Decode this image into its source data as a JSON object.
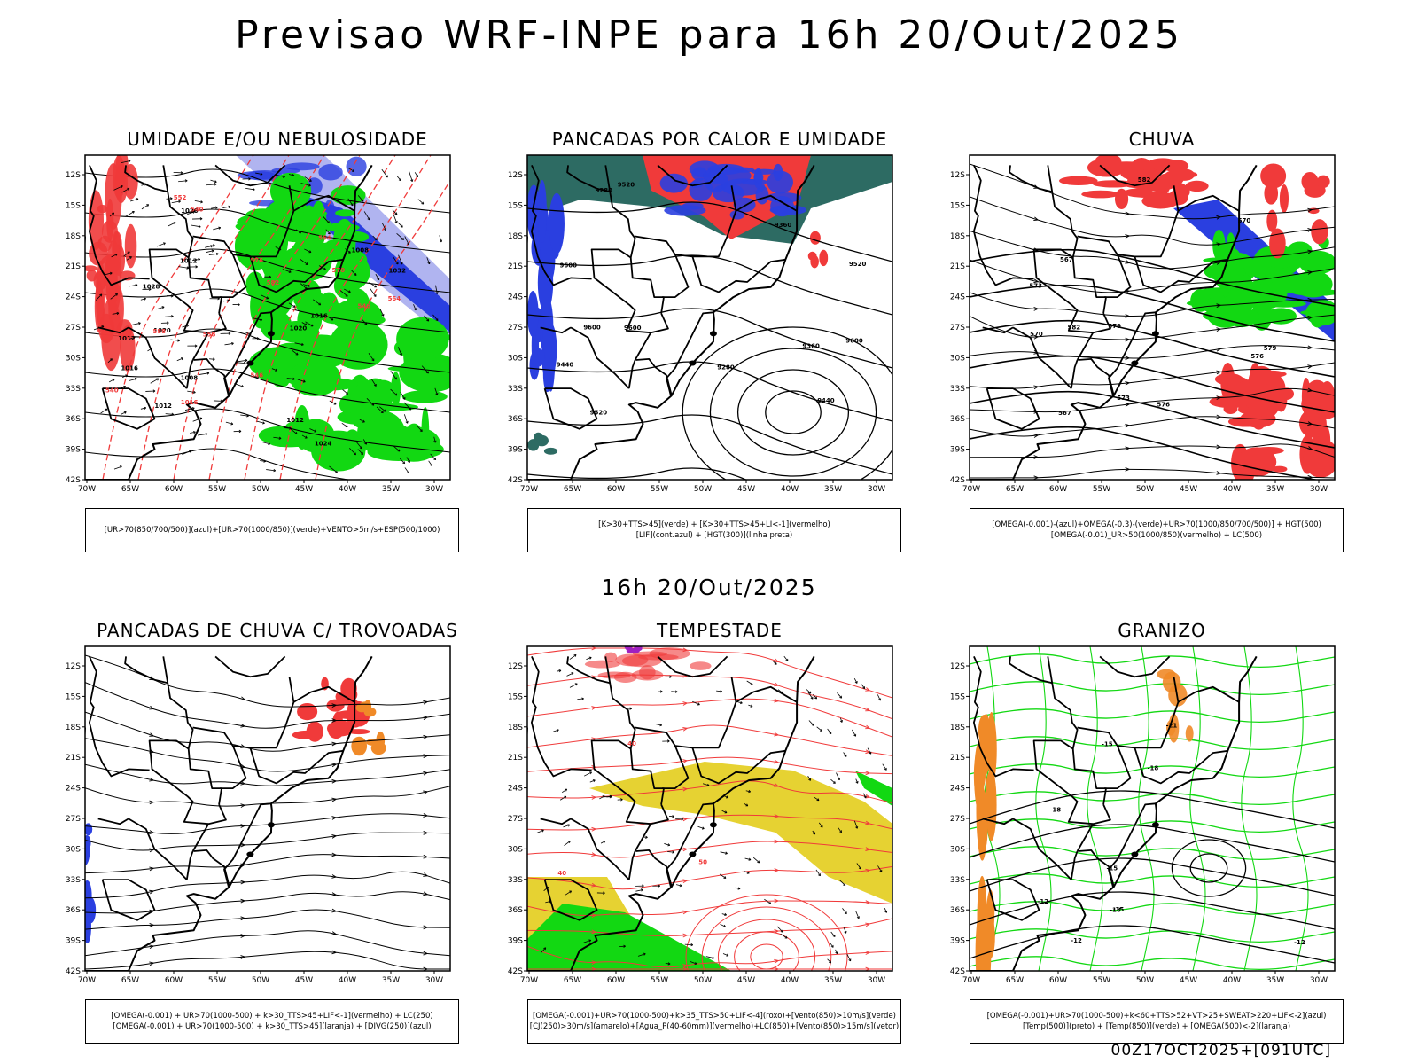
{
  "main_title": "Previsao WRF-INPE  para 16h 20/Out/2025",
  "mid_title": "16h 20/Out/2025",
  "footer": "00Z17OCT2025+[091UTC]",
  "lat_ticks": [
    "12S",
    "15S",
    "18S",
    "21S",
    "24S",
    "27S",
    "30S",
    "33S",
    "36S",
    "39S",
    "42S"
  ],
  "lon_ticks": [
    "70W",
    "65W",
    "60W",
    "55W",
    "50W",
    "45W",
    "40W",
    "35W",
    "30W"
  ],
  "colors": {
    "blue": "#2a3fe0",
    "light_blue": "#b0b4f0",
    "mid_blue": "#7b82e8",
    "green": "#12d812",
    "red": "#f03a3a",
    "dark_teal": "#2d6b63",
    "yellow": "#e6d232",
    "orange": "#f08a28",
    "purple": "#a020c0"
  },
  "panels": [
    {
      "id": "umidade",
      "title": "UMIDADE E/OU NEBULOSIDADE",
      "legend": [
        "[UR>70(850/700/500)](azul)+[UR>70(1000/850)](verde)+VENTO>5m/s+ESP(500/1000)"
      ],
      "labels": [
        "1008",
        "1008",
        "1012",
        "1012",
        "1016",
        "1016",
        "1020",
        "1024",
        "1020",
        "1012",
        "1020",
        "1028",
        "1032",
        "1012",
        "1016",
        "576",
        "570",
        "564",
        "588",
        "582",
        "552",
        "564",
        "558",
        "546",
        "540",
        "546",
        "540"
      ]
    },
    {
      "id": "pancadas",
      "title": "PANCADAS POR CALOR E UMIDADE",
      "legend": [
        "[K>30+TTS>45](verde) + [K>30+TTS>45+LI<-1](vermelho)",
        "[LIF](cont.azul) + [HGT(300)](linha preta)"
      ],
      "labels": [
        "9600",
        "9600",
        "9600",
        "9600",
        "9520",
        "9520",
        "9440",
        "9360",
        "9280",
        "9440",
        "9360",
        "9280",
        "9520"
      ]
    },
    {
      "id": "chuva",
      "title": "CHUVA",
      "legend": [
        "[OMEGA(-0.001)-(azul)+OMEGA(-0.3)-(verde)+UR>70(1000/850/700/500)] + HGT(500)",
        "[OMEGA(-0.01)_UR>50(1000/850)(vermelho) + LC(500)"
      ],
      "labels": [
        "582",
        "582",
        "579",
        "579",
        "576",
        "573",
        "570",
        "567",
        "567",
        "570",
        "573",
        "576"
      ]
    },
    {
      "id": "trovoadas",
      "title": "PANCADAS DE CHUVA C/ TROVOADAS",
      "legend": [
        "[OMEGA(-0.001) + UR>70(1000-500) + k>30_TTS>45+LIF<-1](vermelho) + LC(250)",
        "[OMEGA(-0.001) + UR>70(1000-500) + k>30_TTS>45](laranja) + [DIVG(250)](azul)"
      ],
      "labels": []
    },
    {
      "id": "tempestade",
      "title": "TEMPESTADE",
      "legend": [
        "[OMEGA(-0.001)+UR>70(1000-500)+k>35_TTS>50+LIF<-4](roxo)+[Vento(850)>10m/s](verde)",
        "[CJ(250)>30m/s](amarelo)+[Agua_P(40-60mm)](vermelho)+LC(850)+[Vento(850)>15m/s](vetor)"
      ],
      "labels": [
        "40",
        "50",
        "40"
      ]
    },
    {
      "id": "granizo",
      "title": "GRANIZO",
      "legend": [
        "[OMEGA(-0.001)+UR>70(1000-500)+k<60+TTS>52+VT>25+SWEAT>220+LIF<-2](azul)",
        "[Temp(500)](preto) + [Temp(850)](verde) + [OMEGA(500)<-2](laranja)"
      ],
      "labels": [
        "-12",
        "-12",
        "-15",
        "-18",
        "-21",
        "-18",
        "-12",
        "-15",
        "-15",
        "-18"
      ]
    }
  ]
}
